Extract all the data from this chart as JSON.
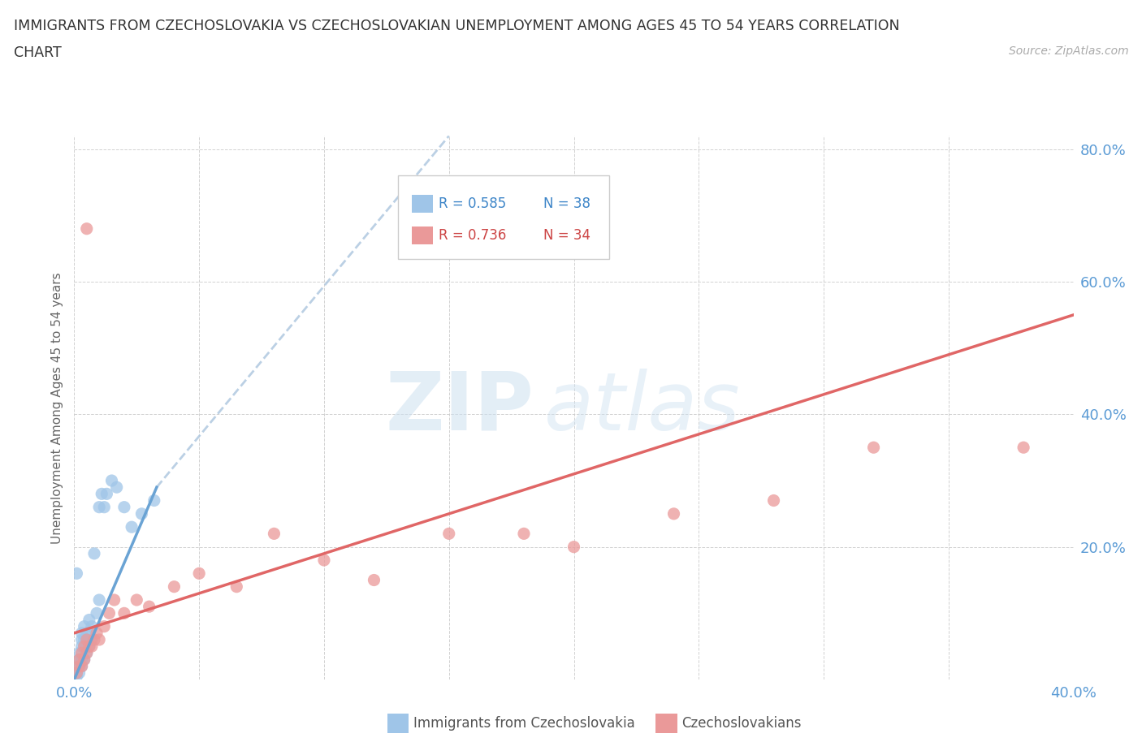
{
  "title_line1": "IMMIGRANTS FROM CZECHOSLOVAKIA VS CZECHOSLOVAKIAN UNEMPLOYMENT AMONG AGES 45 TO 54 YEARS CORRELATION",
  "title_line2": "CHART",
  "source": "Source: ZipAtlas.com",
  "ylabel": "Unemployment Among Ages 45 to 54 years",
  "xlim": [
    0.0,
    0.4
  ],
  "ylim": [
    0.0,
    0.82
  ],
  "xticks": [
    0.0,
    0.05,
    0.1,
    0.15,
    0.2,
    0.25,
    0.3,
    0.35,
    0.4
  ],
  "yticks": [
    0.0,
    0.2,
    0.4,
    0.6,
    0.8
  ],
  "xtick_labels": [
    "0.0%",
    "",
    "",
    "",
    "",
    "",
    "",
    "",
    "40.0%"
  ],
  "ytick_labels": [
    "",
    "20.0%",
    "40.0%",
    "60.0%",
    "80.0%"
  ],
  "legend_r1": "R = 0.585",
  "legend_n1": "N = 38",
  "legend_r2": "R = 0.736",
  "legend_n2": "N = 34",
  "color_blue": "#9fc5e8",
  "color_pink": "#ea9999",
  "color_blue_dark": "#3d85c8",
  "color_pink_dark": "#cc4444",
  "color_trendline_blue": "#6aa3d4",
  "color_trendline_blue_dash": "#b0c8e0",
  "color_trendline_pink": "#e06666",
  "watermark_color": "#cce0f0",
  "background_color": "#ffffff",
  "blue_scatter_x": [
    0.001,
    0.001,
    0.001,
    0.002,
    0.002,
    0.002,
    0.002,
    0.003,
    0.003,
    0.003,
    0.003,
    0.003,
    0.004,
    0.004,
    0.004,
    0.004,
    0.005,
    0.005,
    0.005,
    0.006,
    0.006,
    0.006,
    0.007,
    0.007,
    0.008,
    0.009,
    0.01,
    0.01,
    0.011,
    0.012,
    0.013,
    0.015,
    0.017,
    0.02,
    0.023,
    0.027,
    0.032,
    0.001
  ],
  "blue_scatter_y": [
    0.005,
    0.01,
    0.02,
    0.01,
    0.02,
    0.03,
    0.04,
    0.02,
    0.03,
    0.05,
    0.06,
    0.07,
    0.03,
    0.05,
    0.06,
    0.08,
    0.04,
    0.06,
    0.07,
    0.05,
    0.07,
    0.09,
    0.06,
    0.08,
    0.19,
    0.1,
    0.12,
    0.26,
    0.28,
    0.26,
    0.28,
    0.3,
    0.29,
    0.26,
    0.23,
    0.25,
    0.27,
    0.16
  ],
  "pink_scatter_x": [
    0.001,
    0.002,
    0.002,
    0.003,
    0.003,
    0.004,
    0.004,
    0.005,
    0.005,
    0.006,
    0.007,
    0.008,
    0.009,
    0.01,
    0.012,
    0.014,
    0.016,
    0.02,
    0.025,
    0.03,
    0.04,
    0.05,
    0.065,
    0.08,
    0.1,
    0.12,
    0.15,
    0.18,
    0.2,
    0.24,
    0.28,
    0.32,
    0.005,
    0.38
  ],
  "pink_scatter_y": [
    0.01,
    0.02,
    0.03,
    0.02,
    0.04,
    0.03,
    0.05,
    0.04,
    0.06,
    0.05,
    0.05,
    0.06,
    0.07,
    0.06,
    0.08,
    0.1,
    0.12,
    0.1,
    0.12,
    0.11,
    0.14,
    0.16,
    0.14,
    0.22,
    0.18,
    0.15,
    0.22,
    0.22,
    0.2,
    0.25,
    0.27,
    0.35,
    0.68,
    0.35
  ],
  "trendline_blue_x0": 0.0,
  "trendline_blue_y0": 0.0,
  "trendline_blue_x1": 0.033,
  "trendline_blue_y1": 0.29,
  "trendline_blue_dash_x0": 0.033,
  "trendline_blue_dash_y0": 0.29,
  "trendline_blue_dash_x1": 0.15,
  "trendline_blue_dash_y1": 0.82,
  "trendline_pink_x0": 0.0,
  "trendline_pink_y0": 0.07,
  "trendline_pink_x1": 0.4,
  "trendline_pink_y1": 0.55
}
